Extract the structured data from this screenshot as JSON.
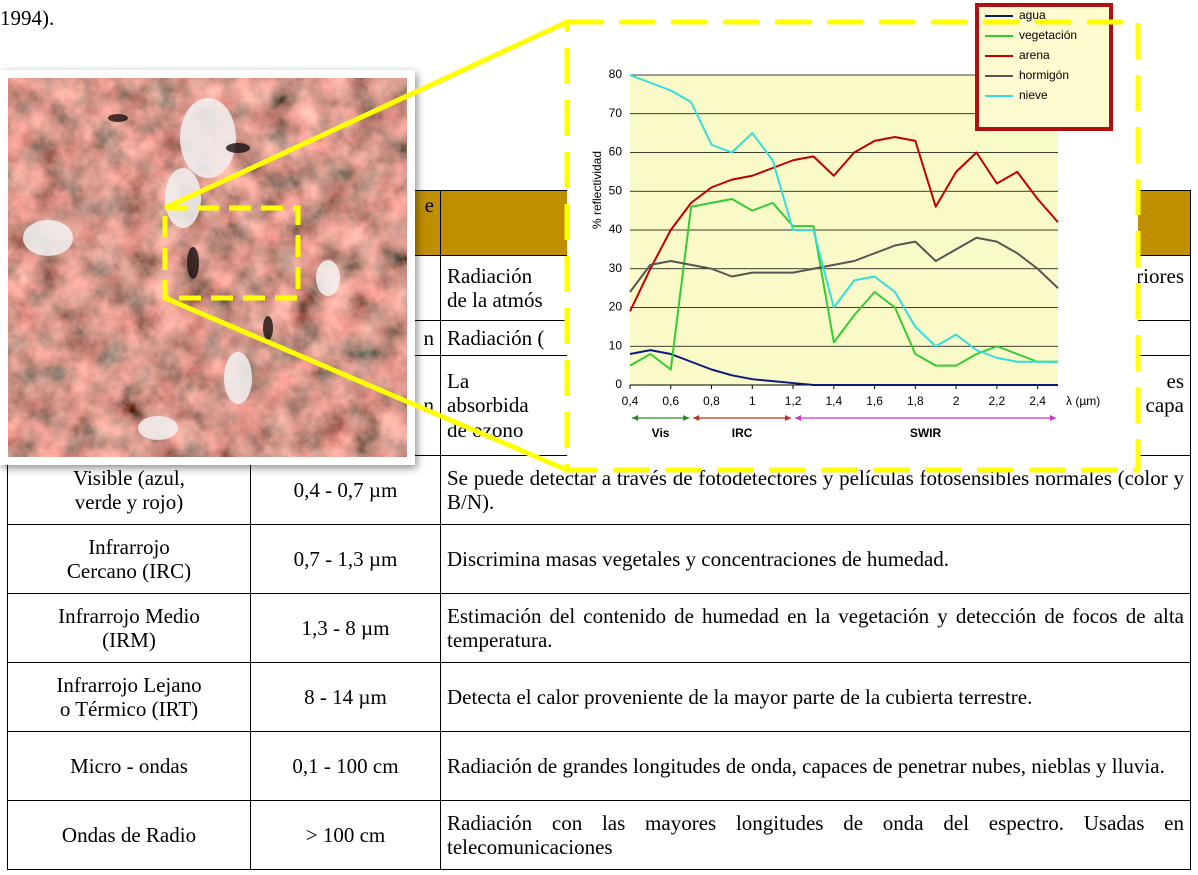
{
  "document": {
    "top_text": "1994).",
    "table": {
      "header_fragment": "e",
      "partial_rows": [
        {
          "description_lines": [
            {
              "left": "Radiación",
              "right": "eriores"
            },
            {
              "left": "de la atmós"
            }
          ]
        },
        {
          "range_fragment": "n",
          "description_lines": [
            {
              "left": "Radiación ("
            }
          ]
        },
        {
          "range_fragment": "n",
          "description_lines": [
            {
              "left": "La",
              "right": "es"
            },
            {
              "left": "absorbida",
              "right": "capa"
            },
            {
              "left": "de ozono"
            }
          ]
        }
      ],
      "rows": [
        {
          "band_lines": [
            "Visible (azul,",
            "verde y rojo)"
          ],
          "range": "0,4 - 0,7 µm",
          "description": "Se puede detectar a través de fotodetectores y películas fotosensibles normales (color y B/N)."
        },
        {
          "band_lines": [
            "Infrarrojo",
            "Cercano (IRC)"
          ],
          "range": "0,7 - 1,3 µm",
          "description": "Discrimina masas vegetales y concentraciones de humedad."
        },
        {
          "band_lines": [
            "Infrarrojo Medio",
            "(IRM)"
          ],
          "range": "1,3 - 8 µm",
          "description": "Estimación del contenido de humedad en la vegetación y detección de focos de alta temperatura."
        },
        {
          "band_lines": [
            "Infrarrojo Lejano",
            "o Térmico (IRT)"
          ],
          "range": "8 - 14 µm",
          "description": "Detecta el calor proveniente de la mayor parte de la cubierta terrestre."
        },
        {
          "band_lines": [
            "Micro - ondas"
          ],
          "range": "0,1 - 100 cm",
          "description": "Radiación de grandes longitudes de onda, capaces de penetrar nubes, nieblas y lluvia."
        },
        {
          "band_lines": [
            "Ondas de Radio"
          ],
          "range": "> 100 cm",
          "description": "Radiación con las mayores longitudes de onda del espectro. Usadas en telecomunicaciones"
        }
      ]
    }
  },
  "chart_data": {
    "type": "line",
    "y_label": "% reflectividad",
    "x_label": "λ (µm)",
    "x": [
      0.4,
      0.5,
      0.6,
      0.7,
      0.8,
      0.9,
      1.0,
      1.1,
      1.2,
      1.3,
      1.4,
      1.5,
      1.6,
      1.7,
      1.8,
      1.9,
      2.0,
      2.1,
      2.2,
      2.3,
      2.4,
      2.5
    ],
    "series": [
      {
        "name": "agua",
        "color": "#0a1a7a",
        "values": [
          8,
          9,
          8,
          6,
          4,
          2.5,
          1.5,
          1,
          0.5,
          0,
          0,
          0,
          0,
          0,
          0,
          0,
          0,
          0,
          0,
          0,
          0,
          0
        ]
      },
      {
        "name": "vegetación",
        "color": "#33cc33",
        "values": [
          5,
          8,
          4,
          46,
          47,
          48,
          45,
          47,
          41,
          41,
          11,
          18,
          24,
          20,
          8,
          5,
          5,
          8,
          10,
          8,
          6,
          6
        ]
      },
      {
        "name": "arena",
        "color": "#c00000",
        "values": [
          19,
          30,
          40,
          47,
          51,
          53,
          54,
          56,
          58,
          59,
          54,
          60,
          63,
          64,
          63,
          46,
          55,
          60,
          52,
          55,
          48,
          42
        ]
      },
      {
        "name": "hormigón",
        "color": "#555555",
        "values": [
          24,
          31,
          32,
          31,
          30,
          28,
          29,
          29,
          29,
          30,
          31,
          32,
          34,
          36,
          37,
          32,
          35,
          38,
          37,
          34,
          30,
          25
        ]
      },
      {
        "name": "nieve",
        "color": "#33dddd",
        "values": [
          80,
          78,
          76,
          73,
          62,
          60,
          65,
          58,
          40,
          40,
          20,
          27,
          28,
          24,
          15,
          10,
          13,
          9,
          7,
          6,
          6,
          6
        ]
      }
    ],
    "xlim": [
      0.4,
      2.5
    ],
    "ylim": [
      0,
      80
    ],
    "xticks": [
      {
        "value": 0.4,
        "label": "0,4"
      },
      {
        "value": 0.6,
        "label": "0,6"
      },
      {
        "value": 0.8,
        "label": "0,8"
      },
      1,
      {
        "value": 1.2,
        "label": "1,2"
      },
      {
        "value": 1.4,
        "label": "1,4"
      },
      {
        "value": 1.6,
        "label": "1,6"
      },
      {
        "value": 1.8,
        "label": "1,8"
      },
      2,
      {
        "value": 2.2,
        "label": "2,2"
      },
      {
        "value": 2.4,
        "label": "2,4"
      }
    ],
    "yticks": [
      0,
      10,
      20,
      30,
      40,
      50,
      60,
      70,
      80
    ],
    "grid": true,
    "legend": "top-right",
    "plot_background": "#fafac8",
    "bands": [
      {
        "label": "Vis",
        "start": 0.4,
        "end": 0.7,
        "color": "#2a8a2a"
      },
      {
        "label": "IRC",
        "start": 0.7,
        "end": 1.2,
        "color": "#c03020"
      },
      {
        "label": "SWIR",
        "start": 1.2,
        "end": 2.5,
        "color": "#cc33cc"
      }
    ]
  }
}
